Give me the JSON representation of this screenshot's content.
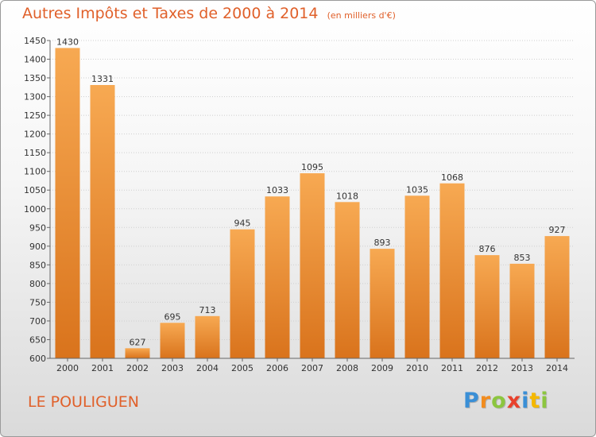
{
  "title": "Autres Impôts et Taxes de 2000 à 2014",
  "subtitle": "(en milliers d'€)",
  "commune": "LE POULIGUEN",
  "logo": {
    "letters": [
      {
        "char": "P",
        "color": "#3a8fd6"
      },
      {
        "char": "r",
        "color": "#f28c1e"
      },
      {
        "char": "o",
        "color": "#8cc63f"
      },
      {
        "char": "x",
        "color": "#e8412c"
      },
      {
        "char": "i",
        "color": "#3a8fd6"
      },
      {
        "char": "t",
        "color": "#f5b800"
      },
      {
        "char": "i",
        "color": "#8cc63f"
      }
    ]
  },
  "colors": {
    "title": "#e0602a",
    "bar_light": "#f7a952",
    "bar_dark": "#d9731c",
    "grid": "#cfcfcf",
    "axis_text": "#333333"
  },
  "chart_data": {
    "type": "bar",
    "categories": [
      "2000",
      "2001",
      "2002",
      "2003",
      "2004",
      "2005",
      "2006",
      "2007",
      "2008",
      "2009",
      "2010",
      "2011",
      "2012",
      "2013",
      "2014"
    ],
    "values": [
      1430,
      1331,
      627,
      695,
      713,
      945,
      1033,
      1095,
      1018,
      893,
      1035,
      1068,
      876,
      853,
      927
    ],
    "ylim": [
      600,
      1450
    ],
    "yticks": [
      600,
      650,
      700,
      750,
      800,
      850,
      900,
      950,
      1000,
      1050,
      1100,
      1150,
      1200,
      1250,
      1300,
      1350,
      1400,
      1450
    ],
    "grid": true,
    "data_labels": true
  }
}
